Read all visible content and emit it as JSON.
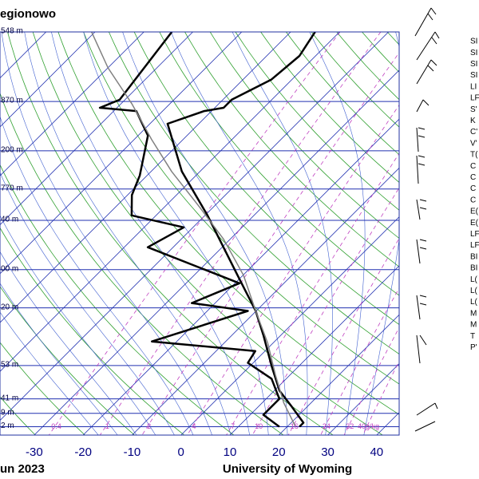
{
  "chart_data": {
    "type": "skewt",
    "title": "egionowo",
    "date": "un 2023",
    "credit": "University of Wyoming",
    "xlim": [
      -37,
      44.6
    ],
    "xticks": [
      -30,
      -20,
      -10,
      0,
      10,
      20,
      30,
      40
    ],
    "ylim": [
      100,
      1050
    ],
    "log_y": true,
    "yticks": [
      {
        "value": 100,
        "label": "548 m"
      },
      {
        "value": 150,
        "label": "870 m"
      },
      {
        "value": 200,
        "label": "200 m"
      },
      {
        "value": 250,
        "label": "770 m"
      },
      {
        "value": 300,
        "label": "40 m"
      },
      {
        "value": 400,
        "label": "00 m"
      },
      {
        "value": 500,
        "label": "20 m"
      },
      {
        "value": 700,
        "label": "53 m"
      },
      {
        "value": 850,
        "label": "41 m"
      },
      {
        "value": 925,
        "label": "9 m"
      },
      {
        "value": 1000,
        "label": "2 m"
      }
    ],
    "mixing_ratios": [
      0.4,
      1,
      2,
      4,
      7,
      10,
      16,
      24,
      32,
      {
        "value": 40,
        "label": "40g/kg"
      }
    ],
    "series": [
      {
        "color": "#000000",
        "pressure": [
          100,
          115,
          132,
          148.5,
          155.6,
          158.6,
          170.8,
          225.7,
          291.5,
          423,
          509,
          586,
          705,
          811,
          889,
          977,
          1000
        ],
        "values": [
          -55.0,
          -53.3,
          -54.2,
          -58.2,
          -58.2,
          -61.5,
          -66.4,
          -53.7,
          -39.5,
          -19.9,
          -10.1,
          -3.6,
          4.6,
          11.1,
          16.8,
          22.5,
          22.5
        ]
      },
      {
        "color": "#000000",
        "pressure": [
          100,
          148.5,
          155.6,
          158.6,
          183,
          231,
          259,
          291.5,
          312.6,
          351,
          433,
          486,
          509,
          608,
          643,
          689,
          756,
          850,
          933,
          1000
        ],
        "values": [
          -84.3,
          -81.1,
          -83.5,
          -75.4,
          -68.0,
          -61.5,
          -59.1,
          -55.0,
          -41.9,
          -45.2,
          -19.1,
          -24.8,
          -11.7,
          -25.1,
          -2.0,
          -1.1,
          7.0,
          12.7,
          12.7,
          18.4
        ]
      },
      {
        "color": "#808080",
        "pressure": [
          100,
          123.3,
          152,
          187.4,
          225.7,
          278.3,
          335.2,
          413.3,
          509,
          613.6,
          739,
          869.7,
          1000
        ],
        "values": [
          -100.7,
          -90.0,
          -77.8,
          -66.4,
          -55.8,
          -42.7,
          -31.3,
          -19.9,
          -10.1,
          -1.1,
          7.0,
          14.4,
          21.7
        ]
      }
    ],
    "station_info": [
      "SI",
      "SI",
      "SI",
      "SI",
      "LI",
      "LF",
      "S'",
      "K",
      "C'",
      "V'",
      "T(",
      "C",
      "C",
      "C",
      "C",
      "E(",
      "E(",
      "LF",
      "LF",
      "BI",
      "BI",
      "L(",
      "L(",
      "L(",
      "M",
      "M",
      "T",
      "P'"
    ]
  }
}
